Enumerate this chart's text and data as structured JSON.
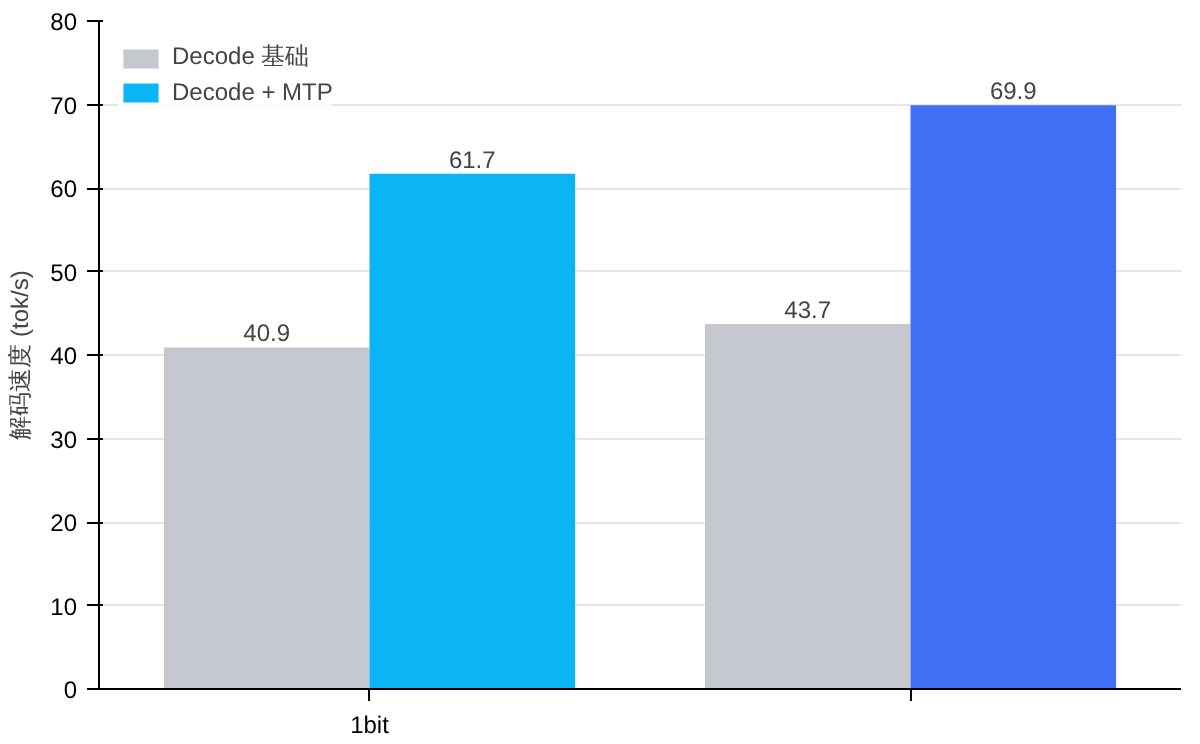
{
  "chart_data": {
    "type": "bar",
    "ylabel": "解码速度 (tok/s)",
    "categories": [
      "1bit",
      null
    ],
    "series": [
      {
        "name": "Decode 基础",
        "color": "#c5c8ce",
        "values": [
          40.9,
          43.7
        ]
      },
      {
        "name": "Decode + MTP",
        "color": "#0bb5f5",
        "colors": [
          null,
          "#4070f4"
        ],
        "values": [
          61.7,
          69.9
        ]
      }
    ],
    "ylim": [
      0,
      80
    ],
    "yticks": [
      0,
      10,
      20,
      30,
      40,
      50,
      60,
      70,
      80
    ],
    "grid": "y",
    "legend": "top left",
    "data_labels": true
  }
}
